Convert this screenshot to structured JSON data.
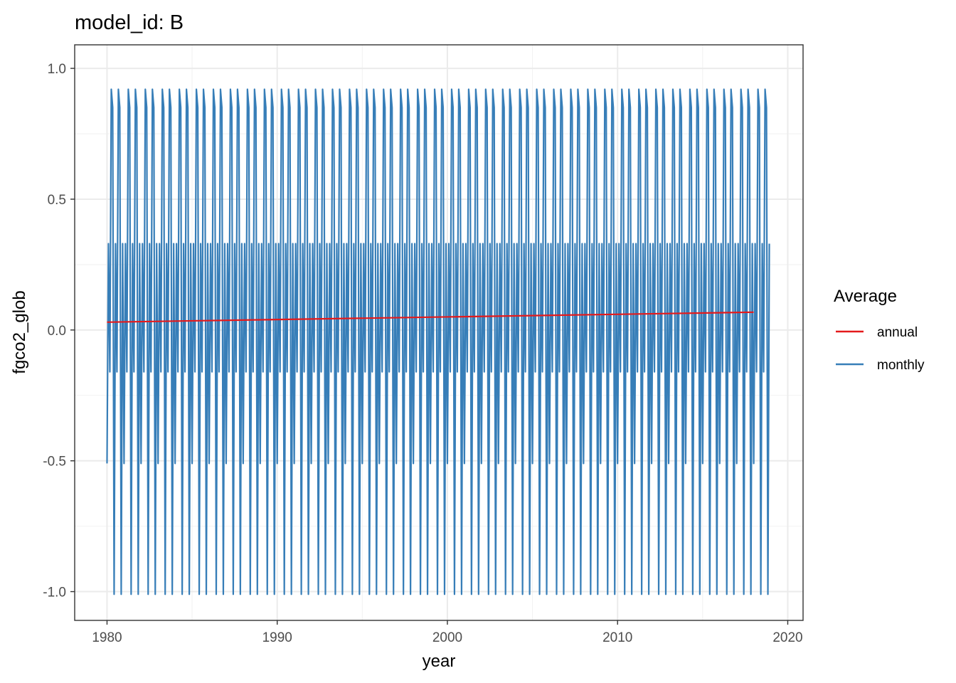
{
  "chart_data": {
    "type": "line",
    "title": "model_id: B",
    "xlabel": "year",
    "ylabel": "fgco2_glob",
    "xlim": [
      1978.1,
      2020.9
    ],
    "ylim": [
      -1.11,
      1.09
    ],
    "x_ticks": [
      1980,
      1990,
      2000,
      2010,
      2020
    ],
    "x_tick_labels": [
      "1980",
      "1990",
      "2000",
      "2010",
      "2020"
    ],
    "y_ticks": [
      1.0,
      0.5,
      0.0,
      -0.5,
      -1.0
    ],
    "y_tick_labels": [
      "1.0",
      "0.5",
      "0.0",
      "-0.5",
      "-1.0"
    ],
    "grid": true,
    "legend": {
      "title": "Average",
      "position": "right",
      "entries": [
        "annual",
        "monthly"
      ]
    },
    "series": [
      {
        "name": "annual",
        "color": "#e41a1c",
        "x": [
          1980,
          2018
        ],
        "y": [
          0.03,
          0.068
        ]
      },
      {
        "name": "monthly",
        "color": "#377eb8",
        "start_year": 1980,
        "end_year": 2019,
        "monthly_pattern": [
          -0.51,
          0.33,
          -0.16,
          0.92,
          0.85,
          -1.01,
          0.33,
          -0.16,
          0.92,
          0.85,
          -1.01,
          0.33
        ]
      }
    ]
  }
}
